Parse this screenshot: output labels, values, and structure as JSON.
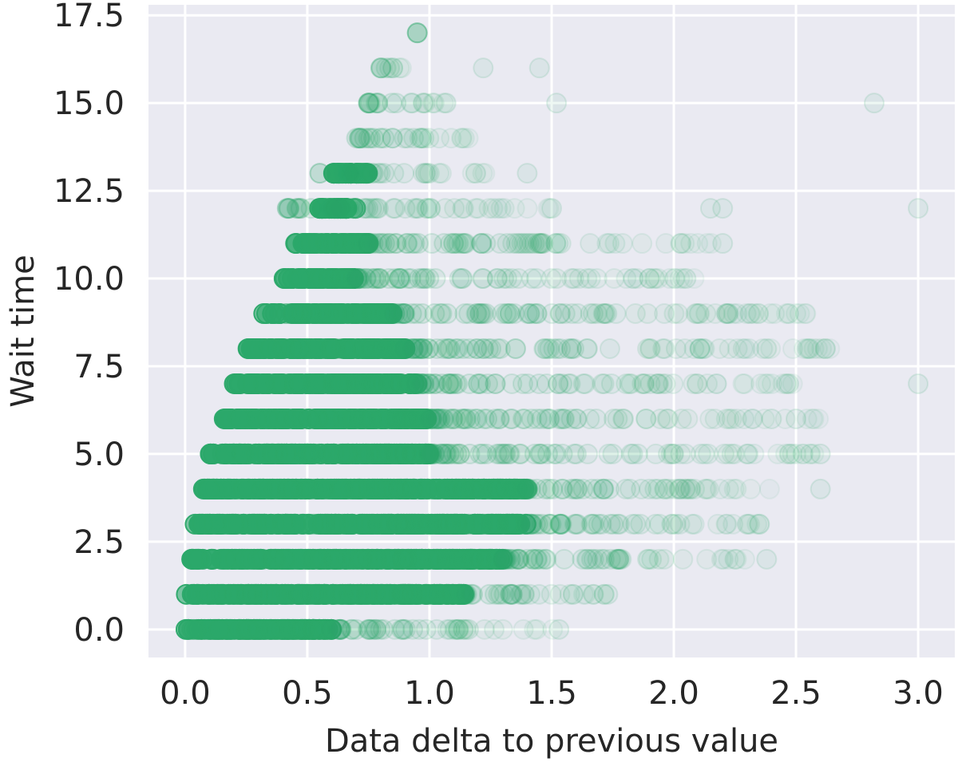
{
  "chart_data": {
    "type": "scatter",
    "title": "",
    "xlabel": "Data delta to previous value",
    "ylabel": "Wait time",
    "xlim": [
      -0.15,
      3.15
    ],
    "ylim": [
      -0.8,
      17.8
    ],
    "xticks": [
      0.0,
      0.5,
      1.0,
      1.5,
      2.0,
      2.5,
      3.0
    ],
    "xtick_labels": [
      "0.0",
      "0.5",
      "1.0",
      "1.5",
      "2.0",
      "2.5",
      "3.0"
    ],
    "yticks": [
      0.0,
      2.5,
      5.0,
      7.5,
      10.0,
      12.5,
      15.0,
      17.5
    ],
    "ytick_labels": [
      "0.0",
      "2.5",
      "5.0",
      "7.5",
      "10.0",
      "12.5",
      "15.0",
      "17.5"
    ],
    "grid": true,
    "background_color": "#eaeaf2",
    "grid_color": "#ffffff",
    "marker_color": "#2ca86a",
    "marker_alpha": 0.07,
    "bands": [
      {
        "y": 0,
        "dense_range": [
          0.0,
          0.6
        ],
        "sparse_range": [
          0.6,
          1.55
        ],
        "outliers": [
          1.16,
          1.53
        ]
      },
      {
        "y": 1,
        "dense_range": [
          0.0,
          1.15
        ],
        "sparse_range": [
          1.15,
          1.75
        ],
        "outliers": [
          1.67,
          1.73
        ]
      },
      {
        "y": 2,
        "dense_range": [
          0.02,
          1.3
        ],
        "sparse_range": [
          1.3,
          2.4
        ],
        "outliers": [
          2.25,
          2.38
        ]
      },
      {
        "y": 3,
        "dense_range": [
          0.04,
          1.4
        ],
        "sparse_range": [
          1.4,
          2.4
        ],
        "outliers": [
          2.3,
          2.35
        ]
      },
      {
        "y": 4,
        "dense_range": [
          0.07,
          1.4
        ],
        "sparse_range": [
          1.4,
          2.4
        ],
        "outliers": [
          2.6
        ]
      },
      {
        "y": 5,
        "dense_range": [
          0.1,
          1.0
        ],
        "sparse_range": [
          1.0,
          2.65
        ],
        "outliers": [
          2.3,
          2.6
        ]
      },
      {
        "y": 6,
        "dense_range": [
          0.15,
          1.0
        ],
        "sparse_range": [
          1.0,
          2.6
        ],
        "outliers": [
          2.4,
          2.5
        ]
      },
      {
        "y": 7,
        "dense_range": [
          0.2,
          0.95
        ],
        "sparse_range": [
          0.95,
          2.5
        ],
        "outliers": [
          2.47,
          3.0
        ]
      },
      {
        "y": 8,
        "dense_range": [
          0.25,
          0.9
        ],
        "sparse_range": [
          0.9,
          2.65
        ],
        "outliers": [
          2.38,
          2.62
        ]
      },
      {
        "y": 9,
        "dense_range": [
          0.32,
          0.85
        ],
        "sparse_range": [
          0.85,
          2.6
        ],
        "outliers": [
          2.47
        ]
      },
      {
        "y": 10,
        "dense_range": [
          0.4,
          0.7
        ],
        "sparse_range": [
          0.7,
          2.1
        ],
        "outliers": [
          1.9,
          2.05
        ]
      },
      {
        "y": 11,
        "dense_range": [
          0.45,
          0.75
        ],
        "sparse_range": [
          0.75,
          2.2
        ],
        "outliers": [
          2.03,
          2.2
        ]
      },
      {
        "y": 12,
        "dense_range": [
          0.55,
          0.7
        ],
        "sparse_range": [
          0.4,
          1.5
        ],
        "outliers": [
          1.5,
          2.15,
          2.2,
          3.0
        ]
      },
      {
        "y": 13,
        "dense_range": [
          0.6,
          0.75
        ],
        "sparse_range": [
          0.55,
          1.25
        ],
        "outliers": [
          1.4
        ]
      },
      {
        "y": 14,
        "dense_range": [
          0.8,
          0.8
        ],
        "sparse_range": [
          0.7,
          1.2
        ],
        "outliers": []
      },
      {
        "y": 15,
        "dense_range": [
          0.75,
          0.75
        ],
        "sparse_range": [
          0.75,
          1.1
        ],
        "outliers": [
          1.52,
          2.82
        ]
      },
      {
        "y": 16,
        "dense_range": [
          0.85,
          0.85
        ],
        "sparse_range": [
          0.8,
          0.9
        ],
        "outliers": [
          1.22,
          1.45
        ]
      },
      {
        "y": 17,
        "dense_range": [
          0.95,
          0.95
        ],
        "sparse_range": [
          0.95,
          0.95
        ],
        "outliers": []
      }
    ]
  }
}
